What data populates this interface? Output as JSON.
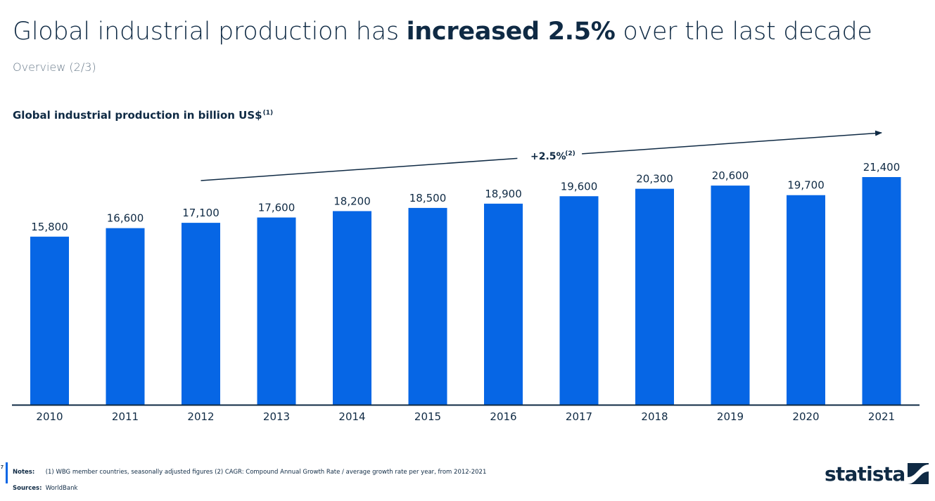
{
  "header": {
    "title_pre": "Global industrial production has ",
    "title_bold": "increased 2.5%",
    "title_post": " over the last decade",
    "subtitle": "Overview (2/3)"
  },
  "chart_data": {
    "type": "bar",
    "title": "Global industrial production in billion US$",
    "title_note": "(1)",
    "categories": [
      "2010",
      "2011",
      "2012",
      "2013",
      "2014",
      "2015",
      "2016",
      "2017",
      "2018",
      "2019",
      "2020",
      "2021"
    ],
    "values": [
      15800,
      16600,
      17100,
      17600,
      18200,
      18500,
      18900,
      19600,
      20300,
      20600,
      19700,
      21400
    ],
    "value_labels": [
      "15,800",
      "16,600",
      "17,100",
      "17,600",
      "18,200",
      "18,500",
      "18,900",
      "19,600",
      "20,300",
      "20,600",
      "19,700",
      "21,400"
    ],
    "ylim": [
      0,
      21400
    ],
    "grid": false,
    "bar_color": "#0666e5",
    "annotation": {
      "label": "+2.5%",
      "note": "(2)",
      "from_category": "2012",
      "to_category": "2021"
    }
  },
  "footer": {
    "page_number": "7",
    "notes_label": "Notes:",
    "notes_text": "(1) WBG member countries, seasonally adjusted figures (2) CAGR: Compound Annual Growth Rate / average growth rate per year, from 2012-2021",
    "sources_label": "Sources:",
    "sources_text": "WorldBank",
    "logo_text": "statista"
  }
}
